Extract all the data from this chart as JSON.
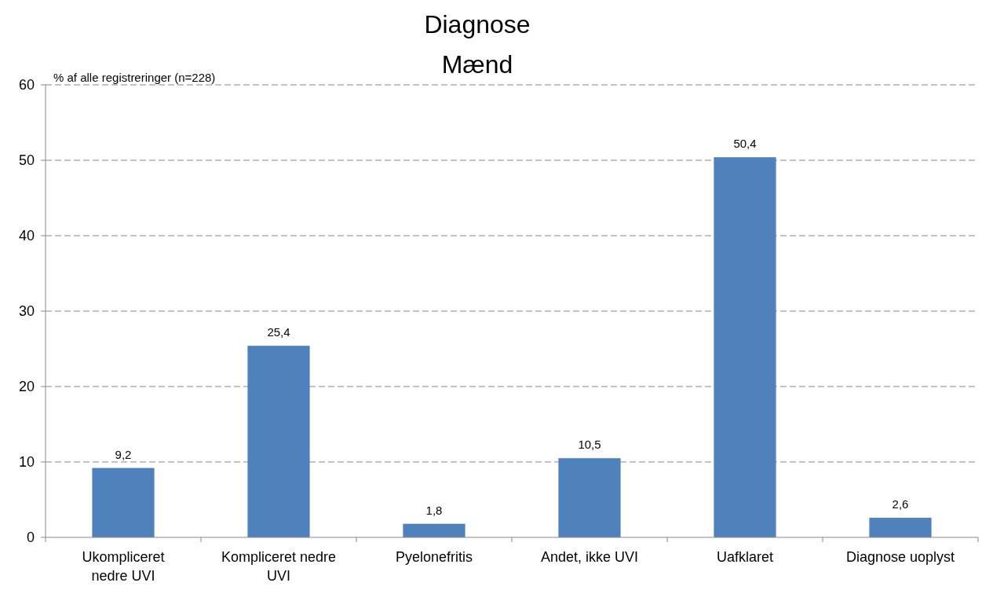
{
  "chart_data": {
    "type": "bar",
    "title": "Diagnose",
    "subtitle": "Mænd",
    "ylabel": "% af alle registreringer (n=228)",
    "categories": [
      "Ukompliceret nedre UVI",
      "Kompliceret nedre UVI",
      "Pyelonefritis",
      "Andet, ikke UVI",
      "Uafklaret",
      "Diagnose uoplyst"
    ],
    "values": [
      9.2,
      25.4,
      1.8,
      10.5,
      50.4,
      2.6
    ],
    "value_labels": [
      "9,2",
      "25,4",
      "1,8",
      "10,5",
      "50,4",
      "2,6"
    ],
    "color": "#4f81bd",
    "ylim": [
      0,
      60
    ],
    "yticks": [
      0,
      10,
      20,
      30,
      40,
      50,
      60
    ],
    "grid": "y"
  }
}
